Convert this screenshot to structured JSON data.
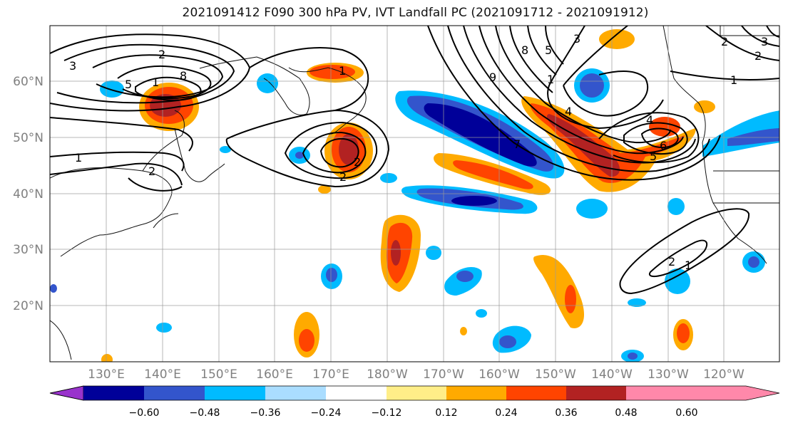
{
  "title": "2021091412 F090 300 hPa PV, IVT Landfall PC (2021091712 - 2021091912)",
  "lat_labels": [
    "60°N",
    "50°N",
    "40°N",
    "30°N",
    "20°N"
  ],
  "lon_labels": [
    "130°E",
    "140°E",
    "150°E",
    "160°E",
    "170°E",
    "180°W",
    "170°W",
    "160°W",
    "150°W",
    "140°W",
    "130°W",
    "120°W"
  ],
  "colorbar": {
    "colors": [
      "#9933cc",
      "#000099",
      "#3355cc",
      "#00bbff",
      "#aaddff",
      "#ffffff",
      "#ffee88",
      "#ffaa00",
      "#ff4400",
      "#b22222",
      "#ff88aa"
    ],
    "tick_labels": [
      "−0.60",
      "−0.48",
      "−0.36",
      "−0.24",
      "−0.12",
      "0.12",
      "0.24",
      "0.36",
      "0.48",
      "0.60"
    ]
  },
  "contour_labels": [
    "3",
    "2",
    "5",
    "1",
    "8",
    "2",
    "1",
    "2",
    "2",
    "1",
    "8",
    "9",
    "5",
    "3",
    "1",
    "2",
    "3",
    "4",
    "7",
    "4",
    "6",
    "5",
    "2",
    "2",
    "1",
    "1"
  ]
}
